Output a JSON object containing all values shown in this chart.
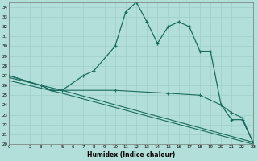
{
  "title": "",
  "xlabel": "Humidex (Indice chaleur)",
  "bg_color": "#b2dfd9",
  "grid_color": "#9ecfca",
  "line_color": "#1a6b5e",
  "xlim": [
    0,
    23
  ],
  "ylim": [
    20,
    34.5
  ],
  "xtick_positions": [
    0,
    2,
    3,
    4,
    5,
    6,
    7,
    8,
    9,
    10,
    11,
    12,
    13,
    14,
    15,
    16,
    17,
    18,
    19,
    20,
    21,
    22,
    23
  ],
  "xtick_labels": [
    "0",
    "2",
    "3",
    "4",
    "5",
    "6",
    "7",
    "8",
    "9",
    "10",
    "11",
    "12",
    "13",
    "14",
    "15",
    "16",
    "17",
    "18",
    "19",
    "20",
    "21",
    "22",
    "23"
  ],
  "ytick_positions": [
    20,
    21,
    22,
    23,
    24,
    25,
    26,
    27,
    28,
    29,
    30,
    31,
    32,
    33,
    34
  ],
  "ytick_labels": [
    "20",
    "21",
    "22",
    "23",
    "24",
    "25",
    "26",
    "27",
    "28",
    "29",
    "30",
    "31",
    "32",
    "33",
    "34"
  ],
  "series1_x": [
    0,
    3,
    4,
    5,
    7,
    8,
    10,
    11,
    12,
    13,
    14,
    15,
    16,
    17,
    18,
    19,
    20,
    21,
    22,
    23
  ],
  "series1_y": [
    27,
    26,
    25.5,
    25.5,
    27,
    27.5,
    30,
    33.5,
    34.5,
    32.5,
    30.3,
    32,
    32.5,
    32,
    29.5,
    29.5,
    24.0,
    22.5,
    22.5,
    20.2
  ],
  "series2_x": [
    0,
    3,
    4,
    5,
    10,
    15,
    18,
    20,
    21,
    22,
    23
  ],
  "series2_y": [
    27,
    26,
    25.5,
    25.5,
    25.5,
    25.2,
    25.0,
    24.0,
    23.2,
    22.7,
    20.2
  ],
  "series3_x": [
    0,
    5,
    23
  ],
  "series3_y": [
    26.8,
    25.5,
    20.2
  ],
  "series4_x": [
    0,
    5,
    23
  ],
  "series4_y": [
    26.5,
    25.2,
    20.0
  ]
}
